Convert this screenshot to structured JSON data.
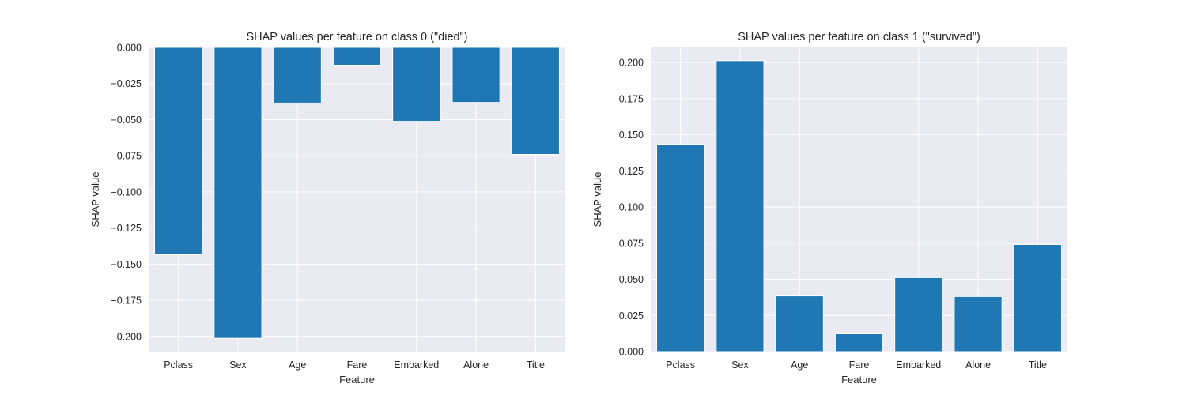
{
  "chart_data": [
    {
      "type": "bar",
      "title": "SHAP values per feature on class 0 (\"died\")",
      "xlabel": "Feature",
      "ylabel": "SHAP value",
      "categories": [
        "Pclass",
        "Sex",
        "Age",
        "Fare",
        "Embarked",
        "Alone",
        "Title"
      ],
      "values": [
        -0.1435,
        -0.2013,
        -0.0385,
        -0.0123,
        -0.0512,
        -0.0381,
        -0.0741
      ],
      "ylim": [
        -0.2105,
        0.0
      ],
      "yticks": [
        0.0,
        -0.025,
        -0.05,
        -0.075,
        -0.1,
        -0.125,
        -0.15,
        -0.175,
        -0.2
      ],
      "ytick_labels": [
        "0.000",
        "−0.025",
        "−0.050",
        "−0.075",
        "−0.100",
        "−0.125",
        "−0.150",
        "−0.175",
        "−0.200"
      ],
      "grid": true,
      "bar_color": "#1f77b4",
      "background": "#eaeaf2"
    },
    {
      "type": "bar",
      "title": "SHAP values per feature on class 1 (\"survived\")",
      "xlabel": "Feature",
      "ylabel": "SHAP value",
      "categories": [
        "Pclass",
        "Sex",
        "Age",
        "Fare",
        "Embarked",
        "Alone",
        "Title"
      ],
      "values": [
        0.1435,
        0.2013,
        0.0385,
        0.0123,
        0.0512,
        0.0381,
        0.0741
      ],
      "ylim": [
        0.0,
        0.2105
      ],
      "yticks": [
        0.0,
        0.025,
        0.05,
        0.075,
        0.1,
        0.125,
        0.15,
        0.175,
        0.2
      ],
      "ytick_labels": [
        "0.000",
        "0.025",
        "0.050",
        "0.075",
        "0.100",
        "0.125",
        "0.150",
        "0.175",
        "0.200"
      ],
      "grid": true,
      "bar_color": "#1f77b4",
      "background": "#eaeaf2"
    }
  ]
}
